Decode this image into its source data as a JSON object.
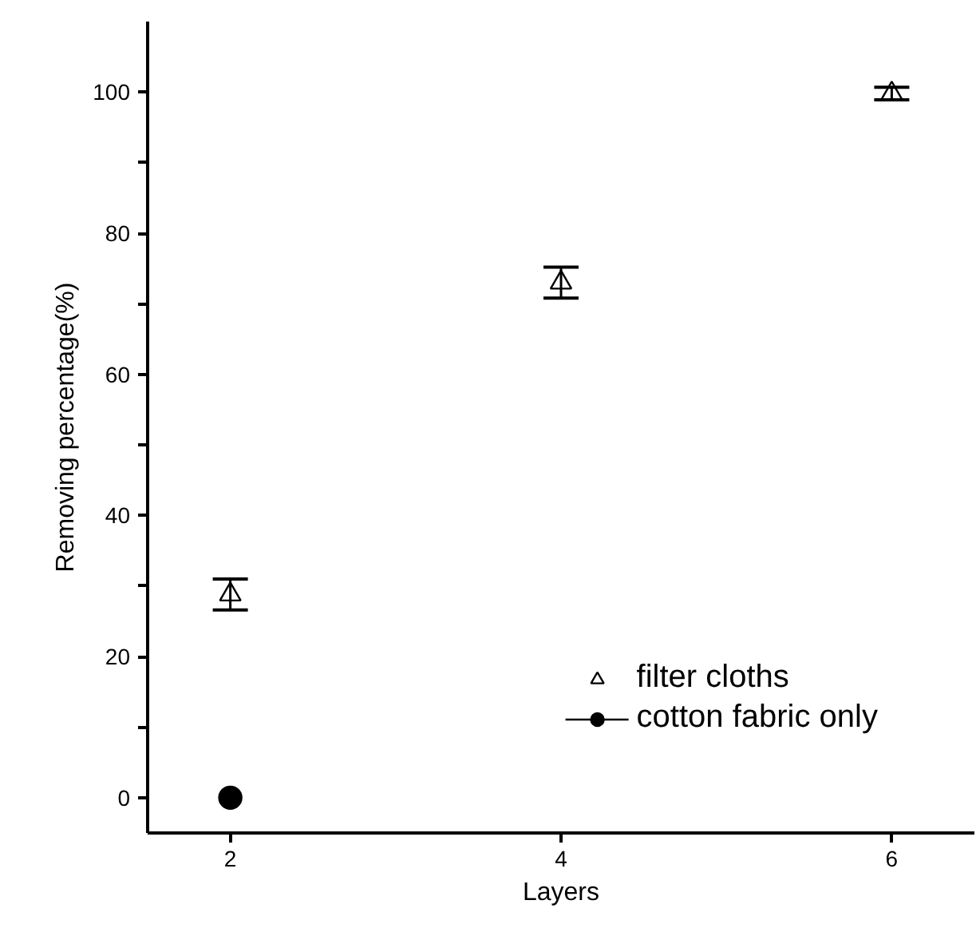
{
  "chart_data": {
    "type": "scatter",
    "xlabel": "Layers",
    "ylabel": "Removing percentage(%)",
    "series": [
      {
        "name": "filter cloths",
        "marker": "triangle",
        "color": "#000000",
        "x": [
          2,
          4,
          6
        ],
        "values": [
          28.8,
          73,
          99.8
        ],
        "errors": [
          2.2,
          2.2,
          0.9
        ]
      },
      {
        "name": "cotton fabric only",
        "type": "line",
        "marker": "circle",
        "color": "#000000",
        "x": [
          2
        ],
        "values": [
          0
        ]
      }
    ],
    "xlim": [
      1.5,
      6.5
    ],
    "xticks": [
      2,
      4,
      6
    ],
    "ylim": [
      -5,
      110
    ],
    "yticks": [
      0,
      {
        "value": 10,
        "label": null
      },
      20,
      {
        "value": 30,
        "label": null
      },
      40,
      {
        "value": 50,
        "label": null
      },
      60,
      {
        "value": 70,
        "label": null
      },
      80,
      {
        "value": 90,
        "label": null
      },
      100
    ],
    "grid": false,
    "legend": "bottom right"
  }
}
